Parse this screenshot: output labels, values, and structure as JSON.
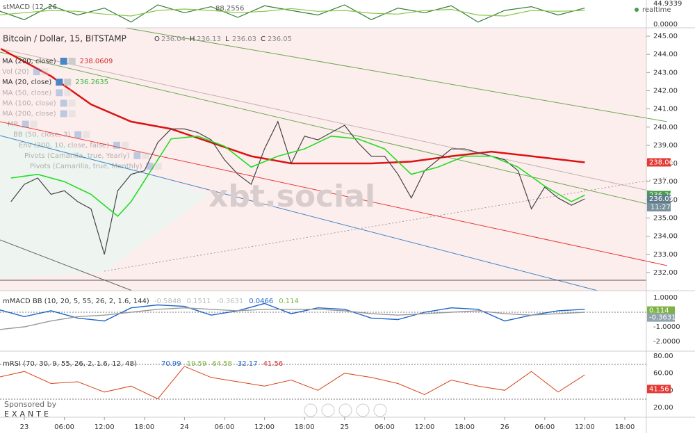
{
  "top_panel": {
    "label": "stMACD (12, 26",
    "value": "88.2556",
    "realtime": "realtime",
    "axis": [
      {
        "value": 44.9339,
        "label": "44.9339"
      },
      {
        "value": 0,
        "label": "0.0000"
      }
    ],
    "x": [
      -4,
      0,
      4,
      8,
      12,
      16,
      20,
      24,
      28,
      32,
      36,
      40,
      44,
      48,
      52,
      56,
      60,
      64,
      68,
      72,
      76,
      80,
      84
    ],
    "series": [
      {
        "color": "#2e7d32",
        "values": [
          30,
          10,
          40,
          20,
          35,
          5,
          42,
          25,
          38,
          15,
          40,
          30,
          20,
          42,
          10,
          35,
          25,
          40,
          5,
          30,
          38,
          20,
          35
        ]
      },
      {
        "color": "#8bc34a",
        "values": [
          20,
          25,
          30,
          28,
          22,
          18,
          30,
          33,
          30,
          25,
          28,
          34,
          28,
          30,
          24,
          22,
          30,
          32,
          20,
          18,
          30,
          28,
          30
        ]
      }
    ]
  },
  "main": {
    "title": "Bitcoin / Dollar, 15, BITSTAMP",
    "ohlc": [
      {
        "label": "O",
        "value": 236.04
      },
      {
        "label": "H",
        "value": 236.13
      },
      {
        "label": "L",
        "value": 236.03
      },
      {
        "label": "C",
        "value": 236.05
      }
    ],
    "watermark": "xbt.social",
    "indicators": [
      {
        "name": "MA (200, close)",
        "value": 238.0609,
        "color": "#d32f2f",
        "faded": false
      },
      {
        "name": "Vol (20)",
        "faded": true
      },
      {
        "name": "MA (20, close)",
        "value": 236.2635,
        "color": "#2eb82e",
        "faded": false
      },
      {
        "name": "MA (50, close)",
        "faded": true
      },
      {
        "name": "MA (100, close)",
        "faded": true
      },
      {
        "name": "MA (200, close)",
        "faded": true
      },
      {
        "name": "MP",
        "faded": true
      },
      {
        "name": "BB (50, close, 3)",
        "faded": true
      },
      {
        "name": "Env (200, 10, close, false)",
        "faded": true
      },
      {
        "name": "Pivots (Camarilla, true, Yearly)",
        "faded": true
      },
      {
        "name": "Pivots (Camarilla, true, Monthly)",
        "faded": true
      }
    ],
    "yticks": [
      {
        "value": 245,
        "label": "245.00"
      },
      {
        "value": 244,
        "label": "244.00"
      },
      {
        "value": 243,
        "label": "243.00"
      },
      {
        "value": 242,
        "label": "242.00"
      },
      {
        "value": 241,
        "label": "241.00"
      },
      {
        "value": 240,
        "label": "240.00"
      },
      {
        "value": 239,
        "label": "239.00"
      },
      {
        "value": 238,
        "label": "238.00"
      },
      {
        "value": 237,
        "label": "237.00"
      },
      {
        "value": 236,
        "label": "236.00"
      },
      {
        "value": 235,
        "label": "235.00"
      },
      {
        "value": 234,
        "label": "234.00"
      },
      {
        "value": 233,
        "label": "233.00"
      },
      {
        "value": 232,
        "label": "232.00"
      }
    ],
    "price_labels": [
      {
        "value": 238.06,
        "color": "#e53935"
      },
      {
        "value": 236.26,
        "color": "#43a047"
      },
      {
        "value": 236.05,
        "color": "#607d8b"
      }
    ],
    "countdown": "11:27",
    "close": {
      "color": "#444444",
      "x": [
        -2,
        0,
        2,
        4,
        6,
        8,
        10,
        12,
        14,
        16,
        18,
        20,
        22,
        24,
        26,
        28,
        30,
        32,
        34,
        36,
        38,
        40,
        42,
        44,
        46,
        48,
        50,
        52,
        54,
        56,
        58,
        60,
        62,
        64,
        66,
        68,
        70,
        72,
        74,
        76,
        78,
        80,
        82,
        84
      ],
      "values": [
        235.9,
        236.85,
        237.2,
        236.3,
        236.5,
        235.9,
        235.5,
        233.0,
        236.5,
        237.4,
        237.6,
        239.15,
        239.9,
        239.9,
        239.7,
        239.3,
        238.2,
        237.4,
        236.85,
        238.8,
        240.3,
        238.0,
        239.5,
        239.3,
        239.7,
        240.1,
        239.15,
        238.4,
        238.4,
        237.4,
        236.1,
        237.6,
        238.2,
        238.8,
        238.8,
        238.6,
        238.4,
        238.2,
        237.6,
        235.5,
        236.7,
        236.1,
        235.7,
        236.05
      ]
    },
    "ma20": {
      "color": "#22dd22",
      "x": [
        -2,
        2,
        6,
        10,
        14,
        16,
        18,
        20,
        22,
        26,
        30,
        34,
        38,
        42,
        46,
        50,
        54,
        58,
        62,
        66,
        70,
        74,
        78,
        82,
        84
      ],
      "values": [
        237.2,
        237.4,
        237.0,
        236.3,
        235.1,
        235.9,
        237.05,
        238.2,
        239.35,
        239.5,
        238.95,
        237.8,
        238.4,
        238.8,
        239.5,
        239.35,
        238.8,
        237.4,
        237.8,
        238.4,
        238.4,
        237.8,
        236.75,
        235.9,
        236.26
      ]
    },
    "ma200": {
      "color": "#dd1111",
      "x": [
        -3.5,
        4,
        10,
        16,
        22,
        28,
        34,
        40,
        46,
        52,
        58,
        64,
        70,
        76,
        84
      ],
      "values": [
        244.3,
        242.8,
        241.25,
        240.3,
        239.9,
        239.15,
        238.4,
        238.0,
        238.0,
        238.0,
        238.1,
        238.4,
        238.65,
        238.4,
        238.06
      ]
    }
  },
  "macd_panel": {
    "label": "mMACD BB (10, 20, 5, 55, 26, 2, 1.6, 144)",
    "values": [
      {
        "value": -0.5848,
        "color": "#bbbbbb"
      },
      {
        "value": 0.1511,
        "color": "#bbbbbb"
      },
      {
        "value": -0.3631,
        "color": "#bbbbbb"
      },
      {
        "value": 0.0466,
        "color": "#1e64c8"
      },
      {
        "value": 0.114,
        "color": "#7cb342"
      }
    ],
    "axis": [
      {
        "value": 1,
        "label": "1.0000"
      },
      {
        "value": -1,
        "label": "-1.0000"
      },
      {
        "value": -2,
        "label": "-2.0000"
      }
    ],
    "right_labels": [
      {
        "value": 0.114,
        "color": "#7cb342"
      },
      {
        "value": -0.3631,
        "color": "#90a4ae"
      }
    ],
    "x": [
      -4,
      0,
      4,
      8,
      12,
      16,
      20,
      24,
      28,
      32,
      36,
      40,
      44,
      48,
      52,
      56,
      60,
      64,
      68,
      72,
      76,
      80,
      84
    ],
    "series": [
      {
        "color": "#1e64c8",
        "values": [
          0.2,
          -0.3,
          0.1,
          -0.4,
          -0.6,
          0.3,
          0.5,
          0.4,
          -0.2,
          0.1,
          0.6,
          -0.1,
          0.3,
          0.2,
          -0.4,
          -0.5,
          0.0,
          0.3,
          0.2,
          -0.6,
          -0.2,
          0.1,
          0.2
        ]
      },
      {
        "color": "#999999",
        "values": [
          -1.2,
          -1.0,
          -0.6,
          -0.3,
          -0.2,
          0.0,
          0.2,
          0.3,
          0.2,
          0.1,
          0.2,
          0.2,
          0.2,
          0.1,
          -0.1,
          -0.2,
          -0.1,
          0.0,
          0.1,
          -0.1,
          -0.2,
          -0.1,
          0.0
        ]
      }
    ]
  },
  "rsi_panel": {
    "label": "mRSI (70, 30, 9, 55, 26, 2, 1.6, 12, 48)",
    "values": [
      {
        "value": 70.99,
        "color": "#1e64c8"
      },
      {
        "value": 19.59,
        "color": "#7cb342"
      },
      {
        "value": 64.58,
        "color": "#7cb342"
      },
      {
        "value": 32.17,
        "color": "#1e64c8"
      },
      {
        "value": 41.56,
        "color": "#d32f2f"
      }
    ],
    "axis": [
      {
        "value": 80,
        "label": "80.00"
      },
      {
        "value": 60,
        "label": "60.00"
      },
      {
        "value": 40,
        "label": "40.00"
      },
      {
        "value": 20,
        "label": "20.00"
      }
    ],
    "right_label": {
      "value": 41.56,
      "color": "#e53935"
    },
    "x": [
      -4,
      0,
      4,
      8,
      12,
      16,
      20,
      24,
      28,
      32,
      36,
      40,
      44,
      48,
      52,
      56,
      60,
      64,
      68,
      72,
      76,
      80,
      84
    ],
    "series": [
      {
        "color": "#d84315",
        "values": [
          55,
          62,
          48,
          50,
          38,
          45,
          30,
          68,
          55,
          50,
          45,
          52,
          40,
          60,
          55,
          48,
          35,
          52,
          45,
          40,
          62,
          38,
          58
        ]
      }
    ]
  },
  "x_axis": [
    {
      "value": 0,
      "label": "23"
    },
    {
      "value": 6,
      "label": "06:00"
    },
    {
      "value": 12,
      "label": "12:00"
    },
    {
      "value": 18,
      "label": "18:00"
    },
    {
      "value": 24,
      "label": "24"
    },
    {
      "value": 30,
      "label": "06:00"
    },
    {
      "value": 36,
      "label": "12:00"
    },
    {
      "value": 42,
      "label": "18:00"
    },
    {
      "value": 48,
      "label": "25"
    },
    {
      "value": 54,
      "label": "06:00"
    },
    {
      "value": 60,
      "label": "12:00"
    },
    {
      "value": 66,
      "label": "18:00"
    },
    {
      "value": 72,
      "label": "26"
    },
    {
      "value": 78,
      "label": "06:00"
    },
    {
      "value": 84,
      "label": "12:00"
    },
    {
      "value": 90,
      "label": "18:00"
    }
  ],
  "sponsor": {
    "text": "Sponsored by",
    "name": "EXANTE"
  }
}
